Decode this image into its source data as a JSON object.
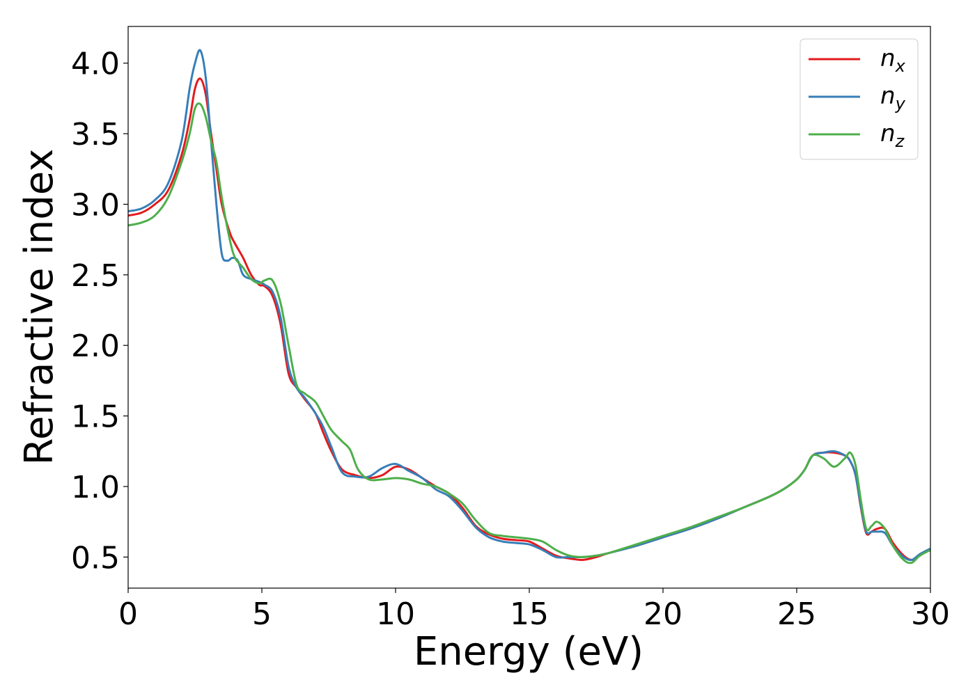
{
  "chart_data": {
    "type": "line",
    "title": "",
    "xlabel": "Energy (eV)",
    "ylabel": "Refractive index",
    "xlim": [
      0,
      30
    ],
    "ylim": [
      0.28,
      4.26
    ],
    "xticks": [
      0,
      5,
      10,
      15,
      20,
      25,
      30
    ],
    "xtick_labels": [
      "0",
      "5",
      "10",
      "15",
      "20",
      "25",
      "30"
    ],
    "yticks": [
      0.5,
      1.0,
      1.5,
      2.0,
      2.5,
      3.0,
      3.5,
      4.0
    ],
    "ytick_labels": [
      "0.5",
      "1.0",
      "1.5",
      "2.0",
      "2.5",
      "3.0",
      "3.5",
      "4.0"
    ],
    "grid": false,
    "legend_position": "top-right",
    "series": [
      {
        "name": "n_x",
        "name_base": "n",
        "name_sub": "x",
        "color": "#e41a1c",
        "x": [
          0,
          0.5,
          1.0,
          1.5,
          2.0,
          2.3,
          2.5,
          2.7,
          2.9,
          3.1,
          3.3,
          3.5,
          3.8,
          4.0,
          4.3,
          4.6,
          4.9,
          5.1,
          5.4,
          5.7,
          6.0,
          6.3,
          6.6,
          7.0,
          7.3,
          7.6,
          8.0,
          8.5,
          9.0,
          9.5,
          10.0,
          10.5,
          11.0,
          11.5,
          12.0,
          12.5,
          13.0,
          13.5,
          14.0,
          14.5,
          15.0,
          15.5,
          16.0,
          16.5,
          17.0,
          17.5,
          18.0,
          19.0,
          20.0,
          21.0,
          22.0,
          23.0,
          24.0,
          24.5,
          25.0,
          25.3,
          25.6,
          26.0,
          26.4,
          26.8,
          27.0,
          27.2,
          27.4,
          27.6,
          27.8,
          28.0,
          28.3,
          28.6,
          29.0,
          29.3,
          29.6,
          30.0
        ],
        "values": [
          2.92,
          2.94,
          3.0,
          3.1,
          3.35,
          3.6,
          3.82,
          3.89,
          3.78,
          3.5,
          3.25,
          3.0,
          2.8,
          2.72,
          2.62,
          2.5,
          2.43,
          2.42,
          2.35,
          2.15,
          1.8,
          1.7,
          1.62,
          1.52,
          1.38,
          1.25,
          1.12,
          1.08,
          1.06,
          1.08,
          1.14,
          1.12,
          1.06,
          1.0,
          0.95,
          0.85,
          0.72,
          0.66,
          0.63,
          0.62,
          0.61,
          0.56,
          0.51,
          0.49,
          0.48,
          0.5,
          0.53,
          0.58,
          0.64,
          0.7,
          0.77,
          0.85,
          0.93,
          0.98,
          1.05,
          1.12,
          1.22,
          1.24,
          1.24,
          1.22,
          1.18,
          1.08,
          0.85,
          0.67,
          0.68,
          0.7,
          0.7,
          0.6,
          0.51,
          0.48,
          0.51,
          0.56
        ]
      },
      {
        "name": "n_y",
        "name_base": "n",
        "name_sub": "y",
        "color": "#377eb8",
        "x": [
          0,
          0.5,
          1.0,
          1.5,
          2.0,
          2.3,
          2.5,
          2.7,
          2.9,
          3.1,
          3.3,
          3.5,
          3.7,
          3.9,
          4.1,
          4.3,
          4.6,
          4.9,
          5.1,
          5.4,
          5.7,
          6.0,
          6.3,
          6.6,
          7.0,
          7.3,
          7.6,
          8.0,
          8.5,
          9.0,
          9.5,
          10.0,
          10.5,
          11.0,
          11.5,
          12.0,
          12.5,
          13.0,
          13.5,
          14.0,
          14.5,
          15.0,
          15.5,
          16.0,
          16.5,
          17.0,
          17.5,
          18.0,
          19.0,
          20.0,
          21.0,
          22.0,
          23.0,
          24.0,
          24.5,
          25.0,
          25.3,
          25.6,
          26.0,
          26.4,
          26.8,
          27.0,
          27.2,
          27.4,
          27.6,
          27.8,
          28.0,
          28.3,
          28.6,
          29.0,
          29.3,
          29.6,
          30.0
        ],
        "values": [
          2.95,
          2.97,
          3.03,
          3.15,
          3.45,
          3.82,
          4.0,
          4.09,
          3.9,
          3.45,
          3.0,
          2.65,
          2.6,
          2.62,
          2.6,
          2.5,
          2.47,
          2.45,
          2.43,
          2.38,
          2.2,
          1.85,
          1.7,
          1.63,
          1.52,
          1.42,
          1.28,
          1.1,
          1.07,
          1.07,
          1.13,
          1.16,
          1.11,
          1.06,
          0.98,
          0.93,
          0.83,
          0.71,
          0.64,
          0.61,
          0.6,
          0.59,
          0.55,
          0.5,
          0.5,
          0.5,
          0.51,
          0.53,
          0.58,
          0.64,
          0.7,
          0.77,
          0.85,
          0.93,
          0.98,
          1.05,
          1.12,
          1.22,
          1.24,
          1.25,
          1.22,
          1.18,
          1.08,
          0.86,
          0.68,
          0.68,
          0.68,
          0.67,
          0.58,
          0.5,
          0.48,
          0.52,
          0.56
        ]
      },
      {
        "name": "n_z",
        "name_base": "n",
        "name_sub": "z",
        "color": "#4daf4a",
        "x": [
          0,
          0.5,
          1.0,
          1.5,
          2.0,
          2.3,
          2.5,
          2.7,
          2.9,
          3.1,
          3.3,
          3.5,
          3.8,
          4.0,
          4.3,
          4.6,
          4.9,
          5.1,
          5.4,
          5.7,
          6.0,
          6.3,
          6.6,
          7.0,
          7.3,
          7.6,
          8.0,
          8.3,
          8.6,
          9.0,
          9.5,
          10.0,
          10.5,
          11.0,
          11.5,
          12.0,
          12.5,
          13.0,
          13.5,
          14.0,
          14.5,
          15.0,
          15.5,
          16.0,
          16.5,
          17.0,
          17.5,
          18.0,
          19.0,
          20.0,
          21.0,
          22.0,
          23.0,
          24.0,
          24.5,
          25.0,
          25.3,
          25.6,
          26.0,
          26.4,
          26.8,
          27.0,
          27.2,
          27.4,
          27.6,
          27.8,
          28.0,
          28.3,
          28.6,
          29.0,
          29.3,
          29.6,
          30.0
        ],
        "values": [
          2.85,
          2.87,
          2.92,
          3.05,
          3.3,
          3.5,
          3.68,
          3.71,
          3.62,
          3.45,
          3.3,
          3.05,
          2.75,
          2.62,
          2.55,
          2.47,
          2.44,
          2.46,
          2.46,
          2.3,
          2.0,
          1.72,
          1.66,
          1.6,
          1.5,
          1.4,
          1.32,
          1.26,
          1.12,
          1.05,
          1.05,
          1.06,
          1.05,
          1.02,
          1.0,
          0.95,
          0.88,
          0.76,
          0.67,
          0.65,
          0.64,
          0.63,
          0.61,
          0.55,
          0.51,
          0.5,
          0.51,
          0.53,
          0.59,
          0.65,
          0.71,
          0.78,
          0.85,
          0.93,
          0.98,
          1.05,
          1.12,
          1.22,
          1.2,
          1.14,
          1.2,
          1.24,
          1.15,
          0.9,
          0.7,
          0.72,
          0.75,
          0.7,
          0.58,
          0.48,
          0.46,
          0.51,
          0.55
        ]
      }
    ]
  }
}
